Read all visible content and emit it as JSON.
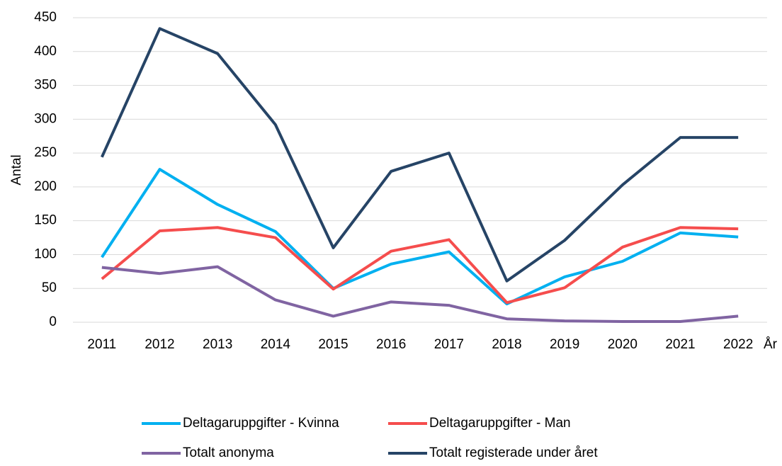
{
  "chart_data": {
    "type": "line",
    "x_label": "År",
    "y_label": "Antal",
    "categories": [
      "2011",
      "2012",
      "2013",
      "2014",
      "2015",
      "2016",
      "2017",
      "2018",
      "2019",
      "2020",
      "2021",
      "2022"
    ],
    "series": [
      {
        "name": "Deltagaruppgifter - Kvinna",
        "color": "#00b0f0",
        "values": [
          96,
          226,
          174,
          134,
          50,
          86,
          104,
          27,
          67,
          90,
          132,
          126
        ]
      },
      {
        "name": "Deltagaruppgifter - Man",
        "color": "#f54d4d",
        "values": [
          64,
          135,
          140,
          125,
          49,
          105,
          122,
          29,
          51,
          111,
          140,
          138
        ]
      },
      {
        "name": "Totalt anonyma",
        "color": "#8064a2",
        "values": [
          81,
          72,
          82,
          33,
          9,
          30,
          25,
          5,
          2,
          1,
          1,
          9
        ]
      },
      {
        "name": "Totalt registerade under året",
        "color": "#264466",
        "values": [
          244,
          434,
          397,
          292,
          110,
          223,
          250,
          61,
          121,
          203,
          273,
          273
        ]
      }
    ],
    "ylim": [
      0,
      450
    ],
    "yticks": [
      0,
      50,
      100,
      150,
      200,
      250,
      300,
      350,
      400,
      450
    ],
    "grid": true
  }
}
